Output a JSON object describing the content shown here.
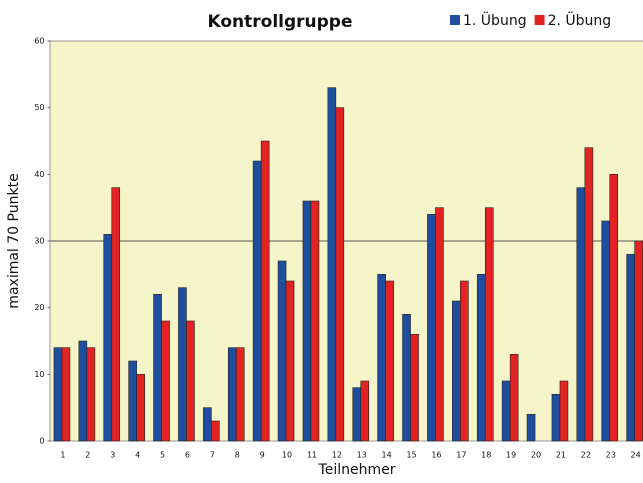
{
  "chart_data": {
    "type": "bar",
    "title": "Kontrollgruppe",
    "x_label": "Teilnehmer",
    "y_label": "maximal 70 Punkte",
    "categories": [
      "1",
      "2",
      "3",
      "4",
      "5",
      "6",
      "7",
      "8",
      "9",
      "10",
      "11",
      "12",
      "13",
      "14",
      "15",
      "16",
      "17",
      "18",
      "19",
      "20",
      "21",
      "22",
      "23",
      "24"
    ],
    "series": [
      {
        "name": "1. Übung",
        "color": "#1f4e9e",
        "values": [
          14,
          15,
          31,
          12,
          22,
          23,
          5,
          14,
          42,
          27,
          36,
          53,
          8,
          25,
          19,
          34,
          21,
          25,
          9,
          4,
          7,
          38,
          33,
          28
        ]
      },
      {
        "name": "2. Übung",
        "color": "#e32222",
        "values": [
          14,
          14,
          38,
          10,
          18,
          18,
          3,
          14,
          45,
          24,
          36,
          50,
          9,
          24,
          16,
          35,
          24,
          35,
          13,
          null,
          9,
          44,
          40,
          30
        ]
      }
    ],
    "ylim": [
      0,
      60
    ],
    "yticks": [
      0,
      10,
      20,
      30,
      40,
      50,
      60
    ],
    "reference_line": 30,
    "legend": "top-right"
  }
}
